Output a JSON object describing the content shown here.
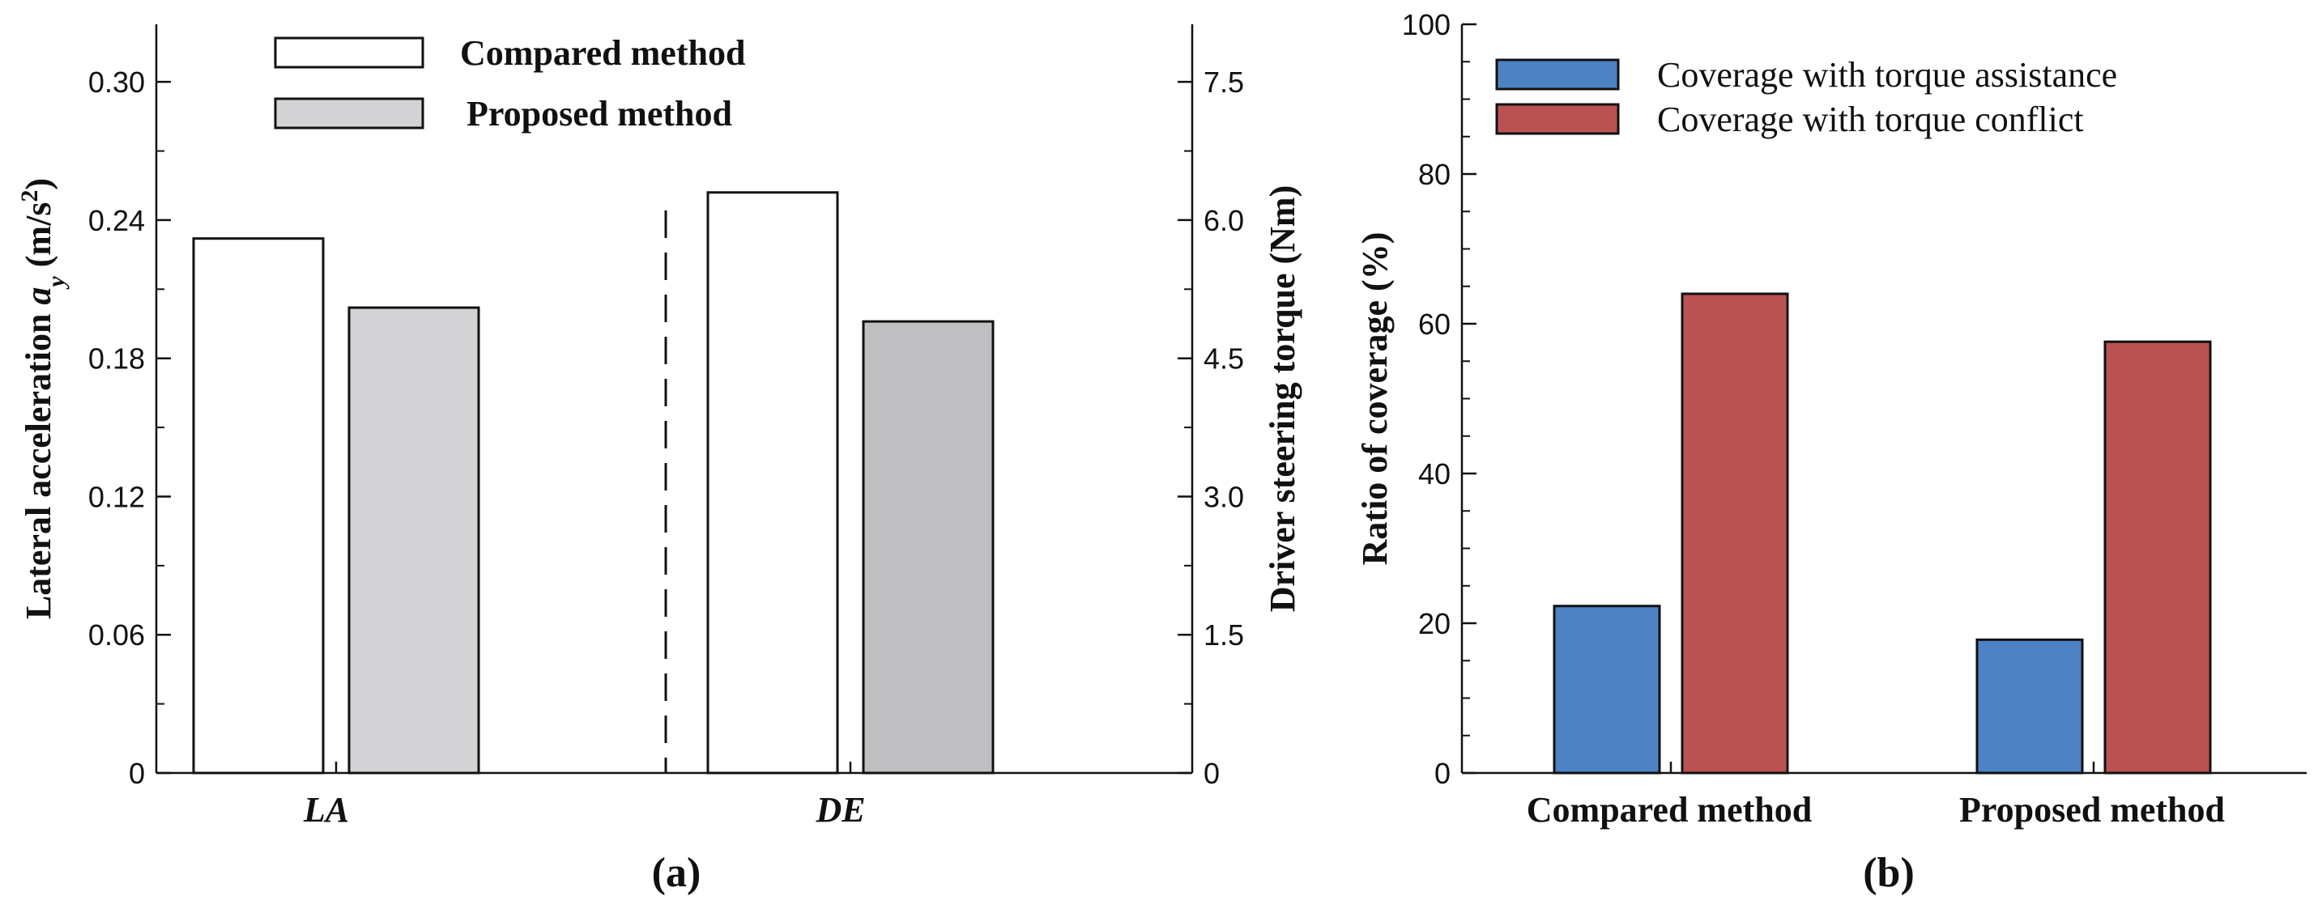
{
  "chart_data": [
    {
      "type": "bar",
      "panel_label": "(a)",
      "categories": [
        "LA",
        "DE"
      ],
      "series": [
        {
          "name": "Compared method",
          "values": [
            0.232,
            6.3
          ],
          "color": "#ffffff"
        },
        {
          "name": "Proposed method",
          "values": [
            0.202,
            4.9
          ],
          "color": "#d3d3d5"
        }
      ],
      "category_axis": [
        "left",
        "right"
      ],
      "proposed_colors": [
        "#d3d3d5",
        "#bfbfc1"
      ],
      "ylabel_left": {
        "pre": "Lateral acceleration ",
        "var": "a",
        "sub": "y",
        "unit_pre": " (m/s",
        "sup": "2",
        "unit_post": ")"
      },
      "ylim_left": [
        0,
        0.325
      ],
      "yticks_left": [
        0,
        0.06,
        0.12,
        0.18,
        0.24,
        0.3
      ],
      "ytick_labels_left": [
        "0",
        "0.06",
        "0.12",
        "0.18",
        "0.24",
        "0.30"
      ],
      "ylabel_right": "Driver steering torque (Nm)",
      "ylim_right": [
        0,
        8.125
      ],
      "yticks_right": [
        0,
        1.5,
        3.0,
        4.5,
        6.0,
        7.5
      ],
      "ytick_labels_right": [
        "0",
        "1.5",
        "3.0",
        "4.5",
        "6.0",
        "7.5"
      ],
      "legend_position": "top-left",
      "separator": "dashed"
    },
    {
      "type": "bar",
      "panel_label": "(b)",
      "categories": [
        "Compared method",
        "Proposed method"
      ],
      "series": [
        {
          "name": "Coverage with torque assistance",
          "values": [
            22.3,
            17.8
          ],
          "color": "#4d82c4"
        },
        {
          "name": "Coverage with torque conflict",
          "values": [
            64.0,
            57.6
          ],
          "color": "#bb5252"
        }
      ],
      "ylabel": "Ratio of coverage (%)",
      "ylim": [
        0,
        100
      ],
      "yticks": [
        0,
        20,
        40,
        60,
        80,
        100
      ],
      "ytick_labels": [
        "0",
        "20",
        "40",
        "60",
        "80",
        "100"
      ],
      "legend_position": "top-left"
    }
  ]
}
